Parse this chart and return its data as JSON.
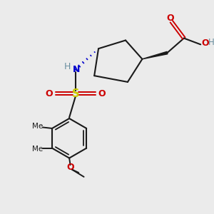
{
  "bg_color": "#ebebeb",
  "bond_color": "#1a1a1a",
  "colors": {
    "O": "#cc0000",
    "N": "#0000cc",
    "S": "#cccc00",
    "H": "#6a8fa0",
    "C": "#1a1a1a"
  }
}
